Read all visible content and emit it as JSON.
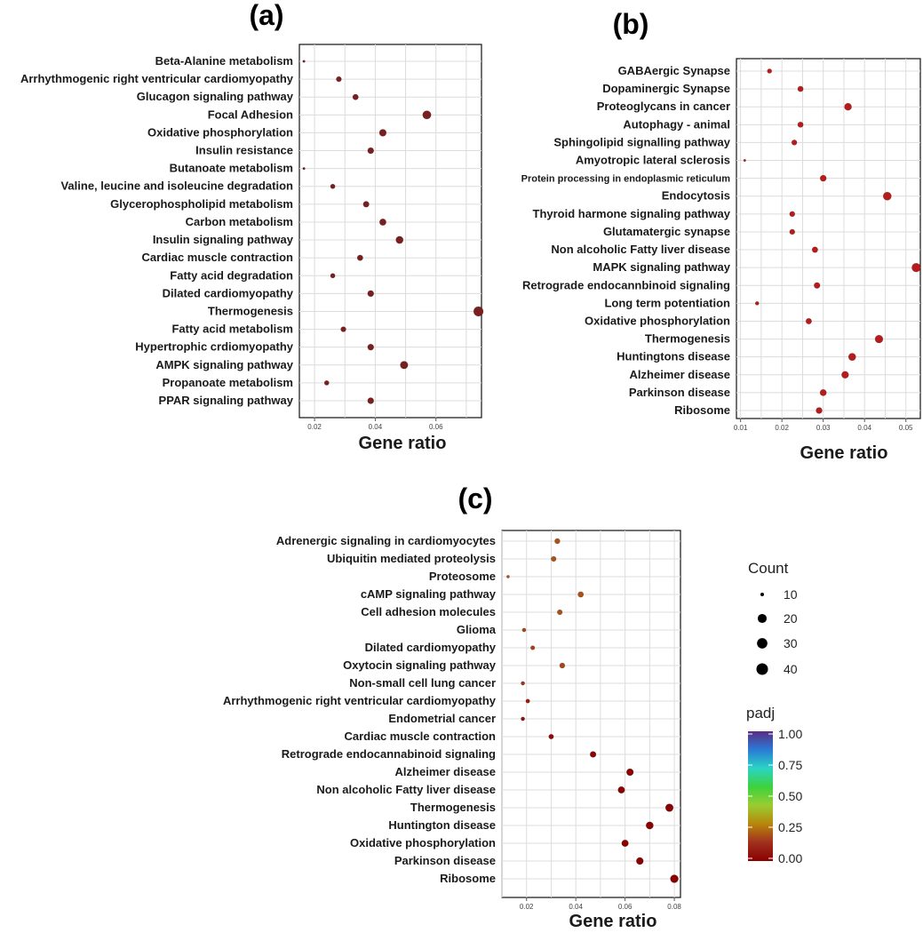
{
  "chart_data": [
    {
      "panel": "(a)",
      "type": "scatter",
      "title": "(a)",
      "xlabel": "Gene ratio",
      "xlim": [
        0.015,
        0.075
      ],
      "xticks": [
        0.02,
        0.04,
        0.06
      ],
      "xtick_labels": [
        "0.02",
        "0.04",
        "0.06"
      ],
      "grid": true,
      "dot_color": "#7a1f1f",
      "points": [
        {
          "label": "Beta-Alanine metabolism",
          "x": 0.0165,
          "count": 2
        },
        {
          "label": "Arrhythmogenic right ventricular cardiomyopathy",
          "x": 0.028,
          "count": 10
        },
        {
          "label": "Glucagon signaling pathway",
          "x": 0.0335,
          "count": 12
        },
        {
          "label": "Focal Adhesion",
          "x": 0.057,
          "count": 26
        },
        {
          "label": "Oxidative phosphorylation",
          "x": 0.0425,
          "count": 18
        },
        {
          "label": "Insulin resistance",
          "x": 0.0385,
          "count": 14
        },
        {
          "label": "Butanoate metabolism",
          "x": 0.0165,
          "count": 2
        },
        {
          "label": "Valine, leucine and isoleucine degradation",
          "x": 0.026,
          "count": 8
        },
        {
          "label": "Glycerophospholipid metabolism",
          "x": 0.037,
          "count": 13
        },
        {
          "label": "Carbon metabolism",
          "x": 0.0425,
          "count": 16
        },
        {
          "label": "Insulin signaling pathway",
          "x": 0.048,
          "count": 20
        },
        {
          "label": "Cardiac muscle contraction",
          "x": 0.035,
          "count": 12
        },
        {
          "label": "Fatty acid degradation",
          "x": 0.026,
          "count": 8
        },
        {
          "label": "Dilated cardiomyopathy",
          "x": 0.0385,
          "count": 14
        },
        {
          "label": "Thermogenesis",
          "x": 0.074,
          "count": 34
        },
        {
          "label": "Fatty acid metabolism",
          "x": 0.0295,
          "count": 10
        },
        {
          "label": "Hypertrophic crdiomyopathy",
          "x": 0.0385,
          "count": 14
        },
        {
          "label": "AMPK signaling pathway",
          "x": 0.0495,
          "count": 22
        },
        {
          "label": "Propanoate metabolism",
          "x": 0.024,
          "count": 8
        },
        {
          "label": "PPAR signaling pathway",
          "x": 0.0385,
          "count": 14
        }
      ]
    },
    {
      "panel": "(b)",
      "type": "scatter",
      "title": "(b)",
      "xlabel": "Gene ratio",
      "xlim": [
        0.009,
        0.0535
      ],
      "xticks": [
        0.01,
        0.02,
        0.03,
        0.04,
        0.05
      ],
      "xtick_labels": [
        "0.01",
        "0.02",
        "0.03",
        "0.04",
        "0.05"
      ],
      "grid": true,
      "dot_color": "#b71c1c",
      "points": [
        {
          "label": "GABAergic Synapse",
          "x": 0.017,
          "count": 8
        },
        {
          "label": "Dopaminergic Synapse",
          "x": 0.0245,
          "count": 12
        },
        {
          "label": "Proteoglycans in cancer",
          "x": 0.036,
          "count": 20
        },
        {
          "label": "Autophagy - animal",
          "x": 0.0245,
          "count": 12
        },
        {
          "label": "Sphingolipid signalling pathway",
          "x": 0.023,
          "count": 11
        },
        {
          "label": "Amyotropic lateral sclerosis",
          "x": 0.011,
          "count": 2
        },
        {
          "label": "Protein processing in endoplasmic reticulum",
          "x": 0.03,
          "count": 15
        },
        {
          "label": "Endocytosis",
          "x": 0.0455,
          "count": 26
        },
        {
          "label": "Thyroid harmone signaling pathway",
          "x": 0.0225,
          "count": 11
        },
        {
          "label": "Glutamatergic synapse",
          "x": 0.0225,
          "count": 11
        },
        {
          "label": "Non alcoholic Fatty liver disease",
          "x": 0.028,
          "count": 13
        },
        {
          "label": "MAPK signaling pathway",
          "x": 0.0525,
          "count": 30
        },
        {
          "label": "Retrograde endocannbinoid signaling",
          "x": 0.0285,
          "count": 14
        },
        {
          "label": "Long term potentiation",
          "x": 0.014,
          "count": 5
        },
        {
          "label": "Oxidative phosphorylation",
          "x": 0.0265,
          "count": 13
        },
        {
          "label": "Thermogenesis",
          "x": 0.0435,
          "count": 24
        },
        {
          "label": "Huntingtons disease",
          "x": 0.037,
          "count": 21
        },
        {
          "label": "Alzheimer disease",
          "x": 0.0353,
          "count": 19
        },
        {
          "label": "Parkinson disease",
          "x": 0.03,
          "count": 16
        },
        {
          "label": "Ribosome",
          "x": 0.029,
          "count": 15
        }
      ]
    },
    {
      "panel": "(c)",
      "type": "scatter",
      "title": "(c)",
      "xlabel": "Gene ratio",
      "xlim": [
        0.01,
        0.0825
      ],
      "xticks": [
        0.02,
        0.04,
        0.06,
        0.08
      ],
      "xtick_labels": [
        "0.02",
        "0.04",
        "0.06",
        "0.08"
      ],
      "grid": true,
      "size_legend": {
        "title": "Count",
        "values": [
          10,
          20,
          30,
          40
        ],
        "labels": [
          "10",
          "20",
          "30",
          "40"
        ]
      },
      "color_legend": {
        "title": "padj",
        "range": [
          0,
          1
        ],
        "ticks": [
          "1.00",
          "0.75",
          "0.50",
          "0.25",
          "0.00"
        ],
        "colors": [
          "#5b2c83",
          "#2a7bd6",
          "#2ad4c4",
          "#3cd23c",
          "#9acd32",
          "#b8860b",
          "#a0301e",
          "#8b0000"
        ]
      },
      "points": [
        {
          "label": "Adrenergic signaling in cardiomyocytes",
          "x": 0.0325,
          "count": 14,
          "padj": 0.2
        },
        {
          "label": "Ubiquitin mediated proteolysis",
          "x": 0.031,
          "count": 13,
          "padj": 0.2
        },
        {
          "label": "Proteosome",
          "x": 0.0125,
          "count": 4,
          "padj": 0.2
        },
        {
          "label": "cAMP signaling pathway",
          "x": 0.042,
          "count": 16,
          "padj": 0.2
        },
        {
          "label": "Cell adhesion molecules",
          "x": 0.0335,
          "count": 13,
          "padj": 0.2
        },
        {
          "label": "Glioma",
          "x": 0.019,
          "count": 7,
          "padj": 0.18
        },
        {
          "label": "Dilated cardiomyopathy",
          "x": 0.0225,
          "count": 9,
          "padj": 0.17
        },
        {
          "label": "Oxytocin signaling pathway",
          "x": 0.0345,
          "count": 14,
          "padj": 0.18
        },
        {
          "label": "Non-small cell lung cancer",
          "x": 0.0185,
          "count": 7,
          "padj": 0.15
        },
        {
          "label": "Arrhythmogenic right ventricular cardiomyopathy",
          "x": 0.0205,
          "count": 8,
          "padj": 0.08
        },
        {
          "label": "Endometrial cancer",
          "x": 0.0185,
          "count": 7,
          "padj": 0.05
        },
        {
          "label": "Cardiac muscle contraction",
          "x": 0.03,
          "count": 12,
          "padj": 0.03
        },
        {
          "label": "Retrograde endocannabinoid signaling",
          "x": 0.047,
          "count": 18,
          "padj": 0.01
        },
        {
          "label": "Alzheimer disease",
          "x": 0.062,
          "count": 24,
          "padj": 0.0
        },
        {
          "label": "Non alcoholic Fatty liver disease",
          "x": 0.0585,
          "count": 23,
          "padj": 0.0
        },
        {
          "label": "Thermogenesis",
          "x": 0.078,
          "count": 30,
          "padj": 0.0
        },
        {
          "label": "Huntington disease",
          "x": 0.07,
          "count": 27,
          "padj": 0.0
        },
        {
          "label": "Oxidative phosphorylation",
          "x": 0.06,
          "count": 23,
          "padj": 0.0
        },
        {
          "label": "Parkinson disease",
          "x": 0.066,
          "count": 25,
          "padj": 0.0
        },
        {
          "label": "Ribosome",
          "x": 0.08,
          "count": 32,
          "padj": 0.0
        }
      ]
    }
  ]
}
